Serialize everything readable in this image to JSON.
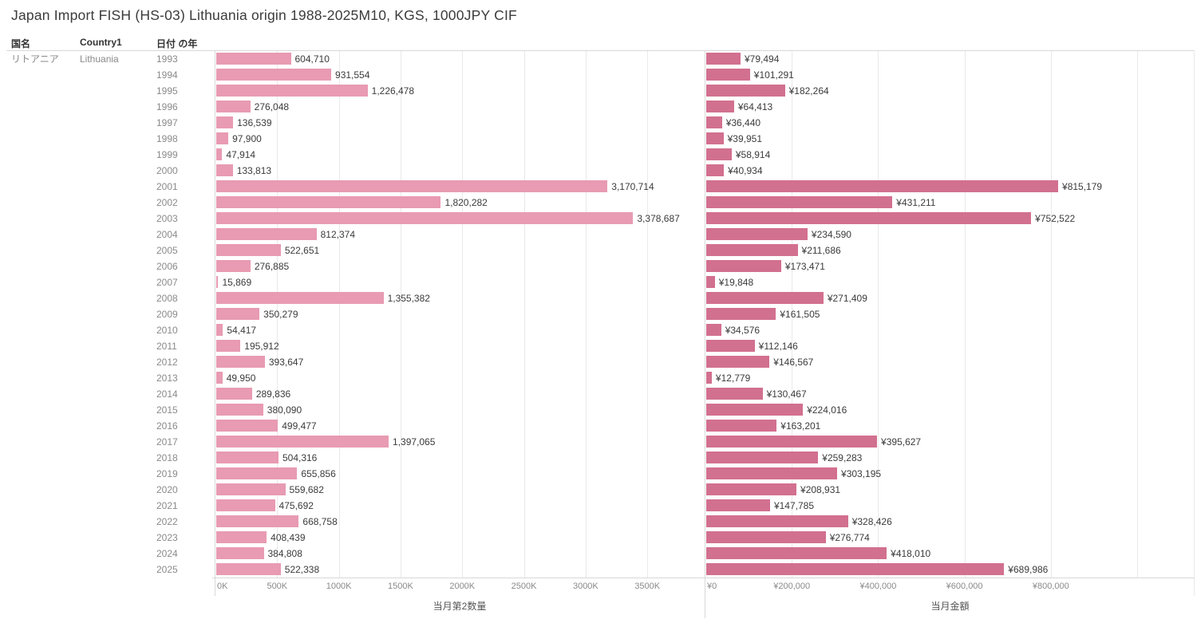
{
  "title": "Japan Import FISH (HS-03) Lithuania origin 1988-2025M10, KGS, 1000JPY CIF",
  "columns": {
    "country_jp": "国名",
    "country_en": "Country1",
    "year": "日付 の年"
  },
  "row_header": {
    "country_jp": "リトアニア",
    "country_en": "Lithuania"
  },
  "colors": {
    "quantity_bar": "#e89bb2",
    "value_bar": "#d2708f",
    "gridline": "#e9e9e9",
    "pane_border": "#d8d8d8",
    "label_text": "#3b3b3b",
    "muted_text": "#8a8a8a"
  },
  "chart_data": [
    {
      "type": "bar",
      "orientation": "horizontal",
      "name": "quantity",
      "xlabel": "当月第2数量",
      "bar_color": "#e89bb2",
      "categories": [
        "1993",
        "1994",
        "1995",
        "1996",
        "1997",
        "1998",
        "1999",
        "2000",
        "2001",
        "2002",
        "2003",
        "2004",
        "2005",
        "2006",
        "2007",
        "2008",
        "2009",
        "2010",
        "2011",
        "2012",
        "2013",
        "2014",
        "2015",
        "2016",
        "2017",
        "2018",
        "2019",
        "2020",
        "2021",
        "2022",
        "2023",
        "2024",
        "2025"
      ],
      "values": [
        604710,
        931554,
        1226478,
        276048,
        136539,
        97900,
        47914,
        133813,
        3170714,
        1820282,
        3378687,
        812374,
        522651,
        276885,
        15869,
        1355382,
        350279,
        54417,
        195912,
        393647,
        49950,
        289836,
        380090,
        499477,
        1397065,
        504316,
        655856,
        559682,
        475692,
        668758,
        408439,
        384808,
        522338
      ],
      "value_labels": [
        "604,710",
        "931,554",
        "1,226,478",
        "276,048",
        "136,539",
        "97,900",
        "47,914",
        "133,813",
        "3,170,714",
        "1,820,282",
        "3,378,687",
        "812,374",
        "522,651",
        "276,885",
        "15,869",
        "1,355,382",
        "350,279",
        "54,417",
        "195,912",
        "393,647",
        "49,950",
        "289,836",
        "380,090",
        "499,477",
        "1,397,065",
        "504,316",
        "655,856",
        "559,682",
        "475,692",
        "668,758",
        "408,439",
        "384,808",
        "522,338"
      ],
      "xlim": [
        0,
        3958000
      ],
      "grid": true,
      "ticks": [
        {
          "v": 0,
          "label": "0K"
        },
        {
          "v": 500000,
          "label": "500K"
        },
        {
          "v": 1000000,
          "label": "1000K"
        },
        {
          "v": 1500000,
          "label": "1500K"
        },
        {
          "v": 2000000,
          "label": "2000K"
        },
        {
          "v": 2500000,
          "label": "2500K"
        },
        {
          "v": 3000000,
          "label": "3000K"
        },
        {
          "v": 3500000,
          "label": "3500K"
        }
      ]
    },
    {
      "type": "bar",
      "orientation": "horizontal",
      "name": "value",
      "xlabel": "当月金額",
      "bar_color": "#d2708f",
      "categories": [
        "1993",
        "1994",
        "1995",
        "1996",
        "1997",
        "1998",
        "1999",
        "2000",
        "2001",
        "2002",
        "2003",
        "2004",
        "2005",
        "2006",
        "2007",
        "2008",
        "2009",
        "2010",
        "2011",
        "2012",
        "2013",
        "2014",
        "2015",
        "2016",
        "2017",
        "2018",
        "2019",
        "2020",
        "2021",
        "2022",
        "2023",
        "2024",
        "2025"
      ],
      "values": [
        79494,
        101291,
        182264,
        64413,
        36440,
        39951,
        58914,
        40934,
        815179,
        431211,
        752522,
        234590,
        211686,
        173471,
        19848,
        271409,
        161505,
        34576,
        112146,
        146567,
        12779,
        130467,
        224016,
        163201,
        395627,
        259283,
        303195,
        208931,
        147785,
        328426,
        276774,
        418010,
        689986
      ],
      "value_labels": [
        "¥79,494",
        "¥101,291",
        "¥182,264",
        "¥64,413",
        "¥36,440",
        "¥39,951",
        "¥58,914",
        "¥40,934",
        "¥815,179",
        "¥431,211",
        "¥752,522",
        "¥234,590",
        "¥211,686",
        "¥173,471",
        "¥19,848",
        "¥271,409",
        "¥161,505",
        "¥34,576",
        "¥112,146",
        "¥146,567",
        "¥12,779",
        "¥130,467",
        "¥224,016",
        "¥163,201",
        "¥395,627",
        "¥259,283",
        "¥303,195",
        "¥208,931",
        "¥147,785",
        "¥328,426",
        "¥276,774",
        "¥418,010",
        "¥689,986"
      ],
      "xlim": [
        0,
        1133000
      ],
      "grid": true,
      "ticks": [
        {
          "v": 0,
          "label": "¥0"
        },
        {
          "v": 200000,
          "label": "¥200,000"
        },
        {
          "v": 400000,
          "label": "¥400,000"
        },
        {
          "v": 600000,
          "label": "¥600,000"
        },
        {
          "v": 800000,
          "label": "¥800,000"
        },
        {
          "v": 1000000,
          "label": ""
        }
      ]
    }
  ]
}
